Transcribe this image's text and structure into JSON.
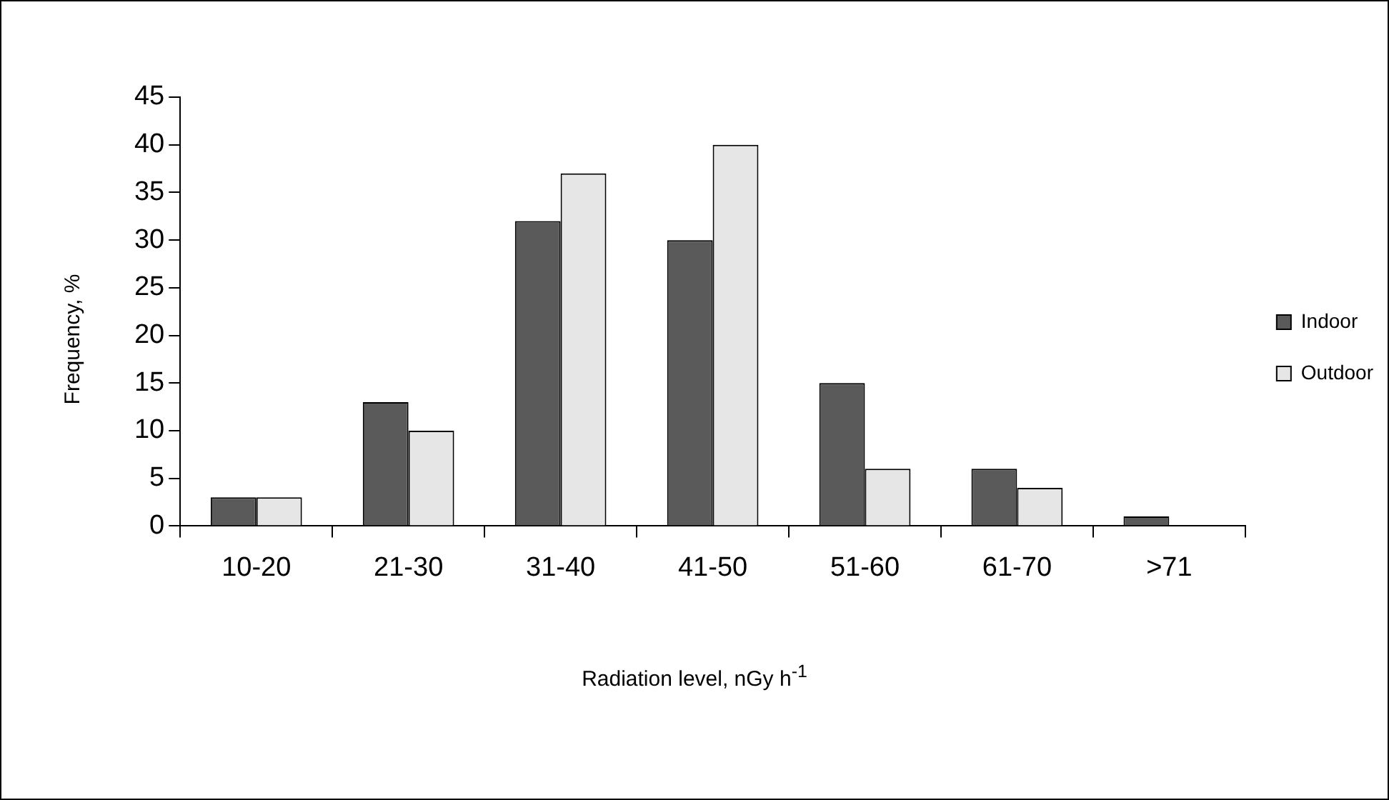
{
  "chart_data": {
    "type": "bar",
    "xlabel": "Radiation level, nGy h$^{-1}$",
    "ylabel": "Frequency, %",
    "categories": [
      "10-20",
      "21-30",
      "31-40",
      "41-50",
      "51-60",
      "61-70",
      ">71"
    ],
    "series": [
      {
        "name": "Indoor",
        "color": "#5a5a5a",
        "values": [
          3,
          13,
          32,
          30,
          15,
          6,
          1
        ]
      },
      {
        "name": "Outdoor",
        "color": "#e6e6e6",
        "values": [
          3,
          10,
          37,
          40,
          6,
          4,
          null
        ]
      }
    ],
    "ylim": [
      0,
      45
    ],
    "yticks": [
      0,
      5,
      10,
      15,
      20,
      25,
      30,
      35,
      40,
      45
    ],
    "grid": false,
    "legend": "right"
  }
}
